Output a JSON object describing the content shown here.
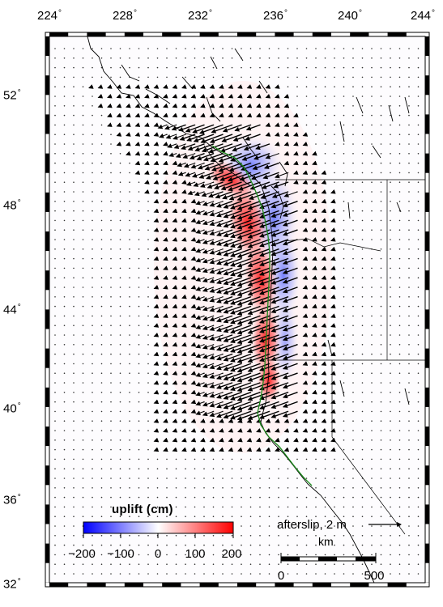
{
  "map": {
    "longitude_ticks": [
      "224",
      "228",
      "232",
      "236",
      "240",
      "244"
    ],
    "latitude_ticks": [
      "52",
      "48",
      "44",
      "40",
      "36",
      "32"
    ],
    "degree_symbol": "°",
    "colorbar": {
      "title": "uplift (cm)",
      "tick_labels": [
        "−200",
        "−100",
        "0",
        "100",
        "200"
      ],
      "min_color": "#0000ff",
      "mid_color": "#ffffff",
      "max_color": "#ff0000"
    },
    "vector_scale": {
      "label": "afterslip, 2 m"
    },
    "scale_bar": {
      "unit": "km",
      "start_label": "0",
      "end_label": "500"
    },
    "colors": {
      "trench": "#1a8a1a",
      "coastline": "#000000",
      "vectors": "#000000"
    }
  }
}
